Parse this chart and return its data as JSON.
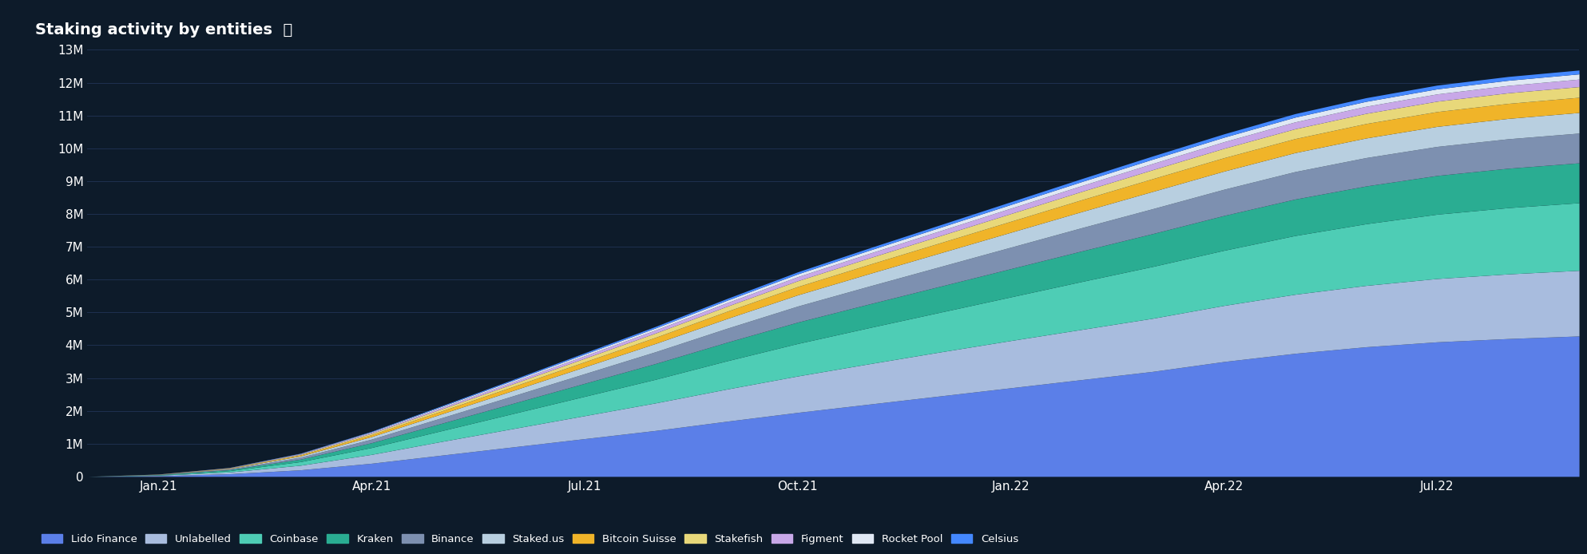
{
  "title": "Staking activity by entities",
  "bg_color": "#0d1b2a",
  "text_color": "#ffffff",
  "grid_color": "#1e3050",
  "ylim": [
    0,
    13000000
  ],
  "yticks": [
    0,
    1000000,
    2000000,
    3000000,
    4000000,
    5000000,
    6000000,
    7000000,
    8000000,
    9000000,
    10000000,
    11000000,
    12000000,
    13000000
  ],
  "ytick_labels": [
    "0",
    "1M",
    "2M",
    "3M",
    "4M",
    "5M",
    "6M",
    "7M",
    "8M",
    "9M",
    "10M",
    "11M",
    "12M",
    "13M"
  ],
  "xtick_labels": [
    "Jan.21",
    "Apr.21",
    "Jul.21",
    "Oct.21",
    "Jan.22",
    "Apr.22",
    "Jul.22"
  ],
  "n_points": 22,
  "xtick_positions": [
    1,
    4,
    7,
    10,
    13,
    16,
    19
  ],
  "layers": [
    {
      "name": "Lido Finance",
      "color": "#5b7fe8",
      "values": [
        0,
        20000,
        80000,
        200000,
        400000,
        650000,
        900000,
        1150000,
        1400000,
        1680000,
        1950000,
        2200000,
        2450000,
        2700000,
        2950000,
        3200000,
        3500000,
        3750000,
        3950000,
        4100000,
        4200000,
        4280000
      ]
    },
    {
      "name": "Unlabelled",
      "color": "#a8bcde",
      "values": [
        0,
        15000,
        55000,
        140000,
        270000,
        420000,
        560000,
        700000,
        840000,
        980000,
        1110000,
        1230000,
        1340000,
        1440000,
        1530000,
        1620000,
        1710000,
        1800000,
        1870000,
        1930000,
        1970000,
        2000000
      ]
    },
    {
      "name": "Coinbase",
      "color": "#4ecdb5",
      "values": [
        0,
        10000,
        40000,
        110000,
        210000,
        330000,
        460000,
        590000,
        720000,
        860000,
        990000,
        1100000,
        1210000,
        1330000,
        1460000,
        1580000,
        1680000,
        1790000,
        1880000,
        1960000,
        2020000,
        2060000
      ]
    },
    {
      "name": "Kraken",
      "color": "#2aad92",
      "values": [
        0,
        8000,
        28000,
        75000,
        145000,
        225000,
        310000,
        395000,
        480000,
        565000,
        650000,
        720000,
        790000,
        860000,
        930000,
        1000000,
        1060000,
        1110000,
        1150000,
        1180000,
        1200000,
        1215000
      ]
    },
    {
      "name": "Binance",
      "color": "#7d90b0",
      "values": [
        0,
        6000,
        22000,
        58000,
        110000,
        170000,
        230000,
        295000,
        360000,
        425000,
        490000,
        545000,
        600000,
        655000,
        710000,
        760000,
        800000,
        838000,
        865000,
        885000,
        898000,
        907000
      ]
    },
    {
      "name": "Staked.us",
      "color": "#b8cfe0",
      "values": [
        0,
        4000,
        15000,
        40000,
        78000,
        120000,
        163000,
        207000,
        252000,
        297000,
        342000,
        380000,
        417000,
        454000,
        490000,
        526000,
        553000,
        578000,
        597000,
        611000,
        621000,
        628000
      ]
    },
    {
      "name": "Bitcoin Suisse",
      "color": "#f0b429",
      "values": [
        0,
        3000,
        11000,
        30000,
        58000,
        89000,
        121000,
        154000,
        187000,
        220000,
        253000,
        281000,
        308000,
        335000,
        362000,
        389000,
        408000,
        427000,
        441000,
        451000,
        458000,
        463000
      ]
    },
    {
      "name": "Stakefish",
      "color": "#e8d87a",
      "values": [
        0,
        2000,
        8000,
        21000,
        41000,
        63000,
        85000,
        108000,
        131000,
        154000,
        177000,
        197000,
        216000,
        235000,
        254000,
        273000,
        287000,
        300000,
        310000,
        317000,
        322000,
        326000
      ]
    },
    {
      "name": "Figment",
      "color": "#c8a8e8",
      "values": [
        0,
        1500,
        5500,
        15000,
        29000,
        44000,
        60000,
        76000,
        92000,
        108000,
        124000,
        138000,
        151000,
        164000,
        177000,
        190000,
        200000,
        209000,
        216000,
        221000,
        225000,
        228000
      ]
    },
    {
      "name": "Rocket Pool",
      "color": "#e0e8f4",
      "values": [
        0,
        1000,
        3800,
        10000,
        19000,
        30000,
        41000,
        52000,
        63000,
        74000,
        85000,
        95000,
        104000,
        113000,
        122000,
        131000,
        138000,
        145000,
        150000,
        154000,
        157000,
        159000
      ]
    },
    {
      "name": "Celsius",
      "color": "#4488ff",
      "values": [
        0,
        800,
        2800,
        7500,
        14500,
        22000,
        30000,
        38000,
        46000,
        54000,
        62000,
        69000,
        76000,
        83000,
        90000,
        97000,
        102000,
        107000,
        111000,
        114000,
        116000,
        117500
      ]
    }
  ],
  "legend_items": [
    {
      "name": "Lido Finance",
      "color": "#5b7fe8"
    },
    {
      "name": "Unlabelled",
      "color": "#a8bcde"
    },
    {
      "name": "Coinbase",
      "color": "#4ecdb5"
    },
    {
      "name": "Kraken",
      "color": "#2aad92"
    },
    {
      "name": "Binance",
      "color": "#7d90b0"
    },
    {
      "name": "Staked.us",
      "color": "#b8cfe0"
    },
    {
      "name": "Bitcoin Suisse",
      "color": "#f0b429"
    },
    {
      "name": "Stakefish",
      "color": "#e8d87a"
    },
    {
      "name": "Figment",
      "color": "#c8a8e8"
    },
    {
      "name": "Rocket Pool",
      "color": "#e0e8f4"
    },
    {
      "name": "Celsius",
      "color": "#4488ff"
    }
  ]
}
